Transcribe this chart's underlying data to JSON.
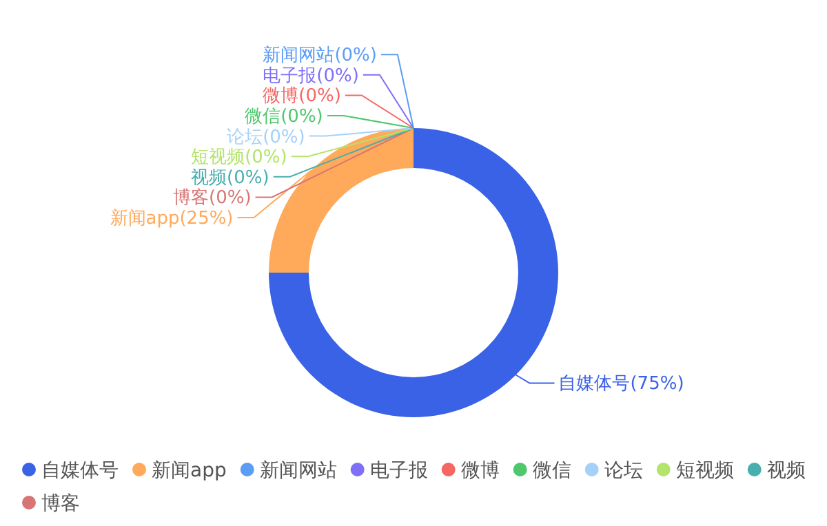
{
  "chart_data": {
    "type": "donut",
    "categories": [
      "自媒体号",
      "新闻app",
      "新闻网站",
      "电子报",
      "微博",
      "微信",
      "论坛",
      "短视频",
      "视频",
      "博客"
    ],
    "values": [
      75,
      25,
      0,
      0,
      0,
      0,
      0,
      0,
      0,
      0
    ],
    "colors": [
      "#3a62e6",
      "#ffa95a",
      "#5b9cf5",
      "#7f6ef7",
      "#f66663",
      "#4ec76d",
      "#a5d1f9",
      "#b3e46b",
      "#49aeae",
      "#d87474"
    ],
    "value_labels": [
      "自媒体号(75%)",
      "新闻app(25%)",
      "新闻网站(0%)",
      "电子报(0%)",
      "微博(0%)",
      "微信(0%)",
      "论坛(0%)",
      "短视频(0%)",
      "视频(0%)",
      "博客(0%)"
    ],
    "legend": "bottom"
  }
}
